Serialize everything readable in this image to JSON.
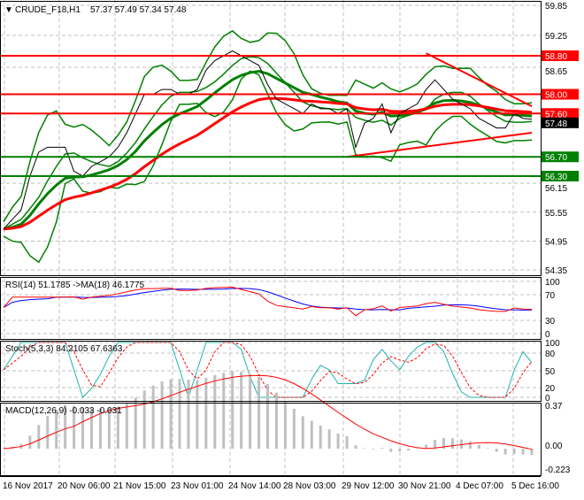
{
  "header": {
    "symbol": "CRUDE_F18,H1",
    "ohlc": "57.37 57.49 57.34 57.48"
  },
  "colors": {
    "bg": "#ffffff",
    "grid": "#c0c0c0",
    "price": "#000000",
    "bands": "#008000",
    "ma_fast": "#008000",
    "ma_slow": "#ff0000",
    "resistance": "#ff0000",
    "support": "#008000",
    "rsi": "#ff0000",
    "rsi_ma": "#0000ff",
    "stoch_main": "#20b2aa",
    "stoch_signal": "#ff0000",
    "macd_hist": "#c0c0c0",
    "macd_signal": "#ff0000"
  },
  "chart_data": [
    {
      "type": "line",
      "title": "CRUDE_F18,H1",
      "ylim": [
        54.35,
        59.85
      ],
      "y_ticks": [
        "59.85",
        "59.25",
        "58.65",
        "56.15",
        "55.55",
        "54.95",
        "54.35"
      ],
      "x_ticks": [
        "16 Nov 2017",
        "20 Nov 06:00",
        "21 Nov 15:00",
        "23 Nov 01:00",
        "24 Nov 14:00",
        "28 Nov 03:00",
        "29 Nov 12:00",
        "30 Nov 21:00",
        "4 Dec 07:00",
        "5 Dec 16:00"
      ],
      "close": [
        55.2,
        55.4,
        55.6,
        56.3,
        56.8,
        56.9,
        56.9,
        56.9,
        56.4,
        56.3,
        56.5,
        56.6,
        56.7,
        56.9,
        57.2,
        57.6,
        58.0,
        58.0,
        58.1,
        58.1,
        58.0,
        58.0,
        58.1,
        58.5,
        58.7,
        58.8,
        58.9,
        58.8,
        58.7,
        58.6,
        58.2,
        57.9,
        57.8,
        57.7,
        57.6,
        57.8,
        57.7,
        57.7,
        57.6,
        57.7,
        56.9,
        57.4,
        57.5,
        57.8,
        57.2,
        57.6,
        57.7,
        57.8,
        58.1,
        58.3,
        58.1,
        57.9,
        57.8,
        57.7,
        57.5,
        57.4,
        57.3,
        57.3,
        57.6,
        57.5,
        57.48
      ],
      "levels": [
        {
          "price": 58.8,
          "label": "58.80",
          "kind": "resistance"
        },
        {
          "price": 58.0,
          "label": "58.00",
          "kind": "resistance"
        },
        {
          "price": 57.6,
          "label": "57.60",
          "kind": "resistance"
        },
        {
          "price": 56.7,
          "label": "56.70",
          "kind": "support"
        },
        {
          "price": 56.3,
          "label": "56.30",
          "kind": "support"
        }
      ],
      "current_price": "57.48",
      "trendlines": [
        {
          "from": [
            48,
            58.85
          ],
          "to": [
            60,
            57.75
          ]
        },
        {
          "from": [
            39,
            56.7
          ],
          "to": [
            60,
            57.2
          ]
        }
      ]
    },
    {
      "type": "line",
      "title": "RSI(14) 51.1785  ->MA(18) 46.1775",
      "ylim": [
        0,
        100
      ],
      "y_ticks": [
        "100",
        "70",
        "30",
        "0"
      ]
    },
    {
      "type": "line",
      "title": "Stoch(5,3,3) 84.2105 67.6363",
      "ylim": [
        0,
        100
      ],
      "y_ticks": [
        "100",
        "80",
        "50",
        "20",
        "0"
      ]
    },
    {
      "type": "bar",
      "title": "MACD(12,26,9) -0.033 -0.031",
      "ylim": [
        -0.223,
        0.37
      ],
      "y_ticks": [
        "0.37",
        "0.00",
        "-0.223"
      ]
    }
  ]
}
